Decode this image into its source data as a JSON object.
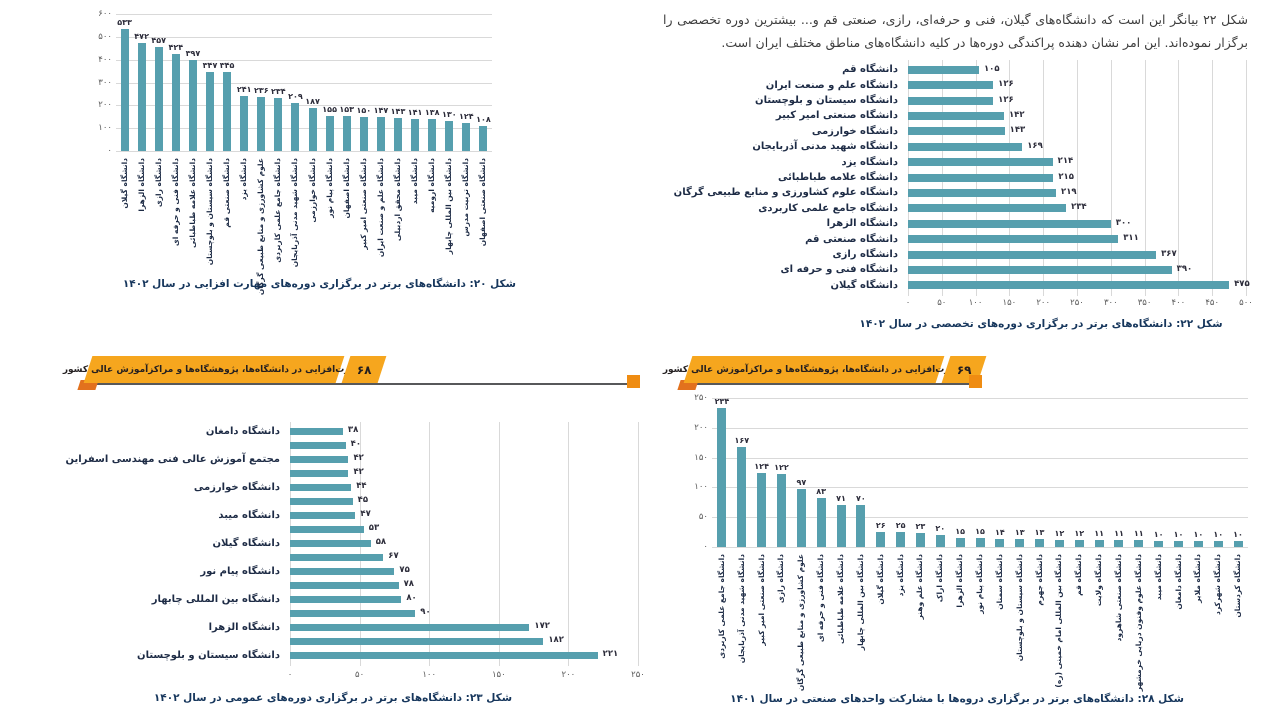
{
  "page": {
    "background": "#ffffff"
  },
  "colors": {
    "bar": "#569fae",
    "gridline": "#d9d9d9",
    "banner_yellow": "#f6a61e",
    "banner_orange_accent": "#e2711d",
    "caption_text": "#16365c",
    "label_text": "#1d2b45"
  },
  "paragraph": {
    "text": "شکل ۲۲ بیانگر این است که دانشگاه‌های گیلان، فنی و حرفه‌ای، رازی، صنعتی قم و... بیشترین دوره تخصصی را برگزار نموده‌اند. این امر نشان دهنده پراکندگی دوره‌ها در کلیه دانشگاه‌های مناطق مختلف ایران است."
  },
  "banners": {
    "left": {
      "title": "مهارت‌افزایی در دانشگاه‌ها، پژوهشگاه‌ها و مراکزآموزش عالی کشور",
      "page_number": "۶۸"
    },
    "right": {
      "title": "مهارت‌افزایی در دانشگاه‌ها، پژوهشگاه‌ها و مراکزآموزش عالی کشور",
      "page_number": "۶۹"
    }
  },
  "chart_data": [
    {
      "id": "figure-20",
      "type": "bar",
      "orientation": "vertical",
      "caption": "شکل ۲۰: دانشگاه‌های برتر در برگزاری دوره‌های مهارت افزایی در سال ۱۴۰۲",
      "categories": [
        "دانشگاه گیلان",
        "دانشگاه الزهرا",
        "دانشگاه رازی",
        "دانشگاه فنی و حرفه ای",
        "دانشگاه علامه طباطبائی",
        "دانشگاه سیستان و بلوچستان",
        "دانشگاه صنعتی قم",
        "دانشگاه یزد",
        "علوم کشاورزی و منابع طبیعی گرگان",
        "دانشگاه جامع علمی کاربردی",
        "دانشگاه شهید مدنی آذربایجان",
        "دانشگاه خوارزمی",
        "دانشگاه پیام نور",
        "دانشگاه اصفهان",
        "دانشگاه صنعتی امیر کبیر",
        "دانشگاه علم و صنعت ایران",
        "دانشگاه محقق اردبیلی",
        "دانشگاه میبد",
        "دانشگاه ارومیه",
        "دانشگاه بین المللی چابهار",
        "دانشگاه تربیت مدرس",
        "دانشگاه صنعتی اصفهان"
      ],
      "values": [
        533,
        472,
        457,
        424,
        397,
        347,
        345,
        241,
        236,
        234,
        209,
        187,
        155,
        153,
        150,
        147,
        143,
        141,
        138,
        130,
        124,
        108
      ],
      "ylim": [
        0,
        600
      ],
      "yticks": [
        0,
        100,
        200,
        300,
        400,
        500,
        600
      ],
      "grid": true,
      "number_format": "persian-digits"
    },
    {
      "id": "figure-22",
      "type": "bar",
      "orientation": "horizontal",
      "caption": "شکل ۲۲: دانشگاه‌های برتر در برگزاری دوره‌های  تخصصی در سال ۱۴۰۲",
      "categories": [
        "دانشگاه قم",
        "دانشگاه علم و صنعت ایران",
        "دانشگاه سیستان و بلوچستان",
        "دانشگاه صنعتی امیر کبیر",
        "دانشگاه خوارزمی",
        "دانشگاه شهید مدنی آذربایجان",
        "دانشگاه یزد",
        "دانشگاه علامه طباطبائی",
        "دانشگاه علوم کشاورزی و منابع طبیعی گرگان",
        "دانشگاه جامع علمی کاربردی",
        "دانشگاه الزهرا",
        "دانشگاه صنعتی قم",
        "دانشگاه رازی",
        "دانشگاه فنی و حرفه ای",
        "دانشگاه گیلان"
      ],
      "values": [
        105,
        126,
        126,
        142,
        143,
        169,
        214,
        215,
        219,
        234,
        300,
        311,
        367,
        390,
        475
      ],
      "xlim": [
        0,
        500
      ],
      "xticks": [
        0,
        50,
        100,
        150,
        200,
        250,
        300,
        350,
        400,
        450,
        500
      ],
      "grid": true,
      "number_format": "persian-digits"
    },
    {
      "id": "figure-23",
      "type": "bar",
      "orientation": "horizontal",
      "caption": "شکل ۲۳: دانشگاه‌های برتر در برگزاری دوره‌های عمومی در سال ۱۴۰۲",
      "categories": [
        "دانشگاه دامغان",
        "",
        "مجتمع آموزش عالی فنی مهندسی اسفراین",
        "",
        "دانشگاه خوارزمی",
        "",
        "دانشگاه میبد",
        "",
        "دانشگاه گیلان",
        "",
        "دانشگاه پیام نور",
        "",
        "دانشگاه بین المللی چابهار",
        "",
        "دانشگاه الزهرا",
        "",
        "دانشگاه سیستان و بلوچستان"
      ],
      "values": [
        38,
        40,
        42,
        42,
        44,
        45,
        47,
        53,
        58,
        67,
        75,
        78,
        80,
        90,
        172,
        182,
        221
      ],
      "xlim": [
        0,
        250
      ],
      "xticks": [
        0,
        50,
        100,
        150,
        200,
        250
      ],
      "grid": true,
      "number_format": "persian-digits"
    },
    {
      "id": "figure-28",
      "type": "bar",
      "orientation": "vertical",
      "caption": "شکل ۲۸: دانشگاه‌های برتر در برگزاری دروه‌ها با مشارکت واحدهای صنعتی در سال ۱۴۰۱",
      "categories": [
        "دانشگاه جامع علمی کاربردی",
        "دانشگاه شهید مدنی آذربایجان",
        "دانشگاه صنعتی امیر کبیر",
        "دانشگاه رازی",
        "علوم کشاورزی و منابع طبیعی گرگان",
        "دانشگاه فنی و حرفه ای",
        "دانشگاه علامه طباطبائی",
        "دانشگاه بین المللی چابهار",
        "دانشگاه گیلان",
        "دانشگاه یزد",
        "دانشگاه علم وهنر",
        "دانشگاه اراک",
        "دانشگاه الزهرا",
        "دانشگاه پیام نور",
        "دانشگاه سمنان",
        "دانشگاه سیستان و بلوچستان",
        "دانشگاه جهرم",
        "دانشگاه بین المللی امام خمینی (ره)",
        "دانشگاه قم",
        "دانشگاه ولایت",
        "دانشگاه صنعتی شاهرود",
        "دانشگاه علوم وفنون دریایی خرمشهر",
        "دانشگاه میبد",
        "دانشگاه دامغان",
        "دانشگاه ملایر",
        "دانشگاه شهرکرد",
        "دانشگاه کردستان"
      ],
      "values": [
        234,
        167,
        124,
        122,
        97,
        83,
        71,
        70,
        26,
        25,
        23,
        20,
        15,
        15,
        14,
        13,
        13,
        12,
        12,
        11,
        11,
        11,
        10,
        10,
        10,
        10,
        10
      ],
      "ylim": [
        0,
        250
      ],
      "yticks": [
        0,
        50,
        100,
        150,
        200,
        250
      ],
      "grid": true,
      "number_format": "persian-digits"
    }
  ]
}
